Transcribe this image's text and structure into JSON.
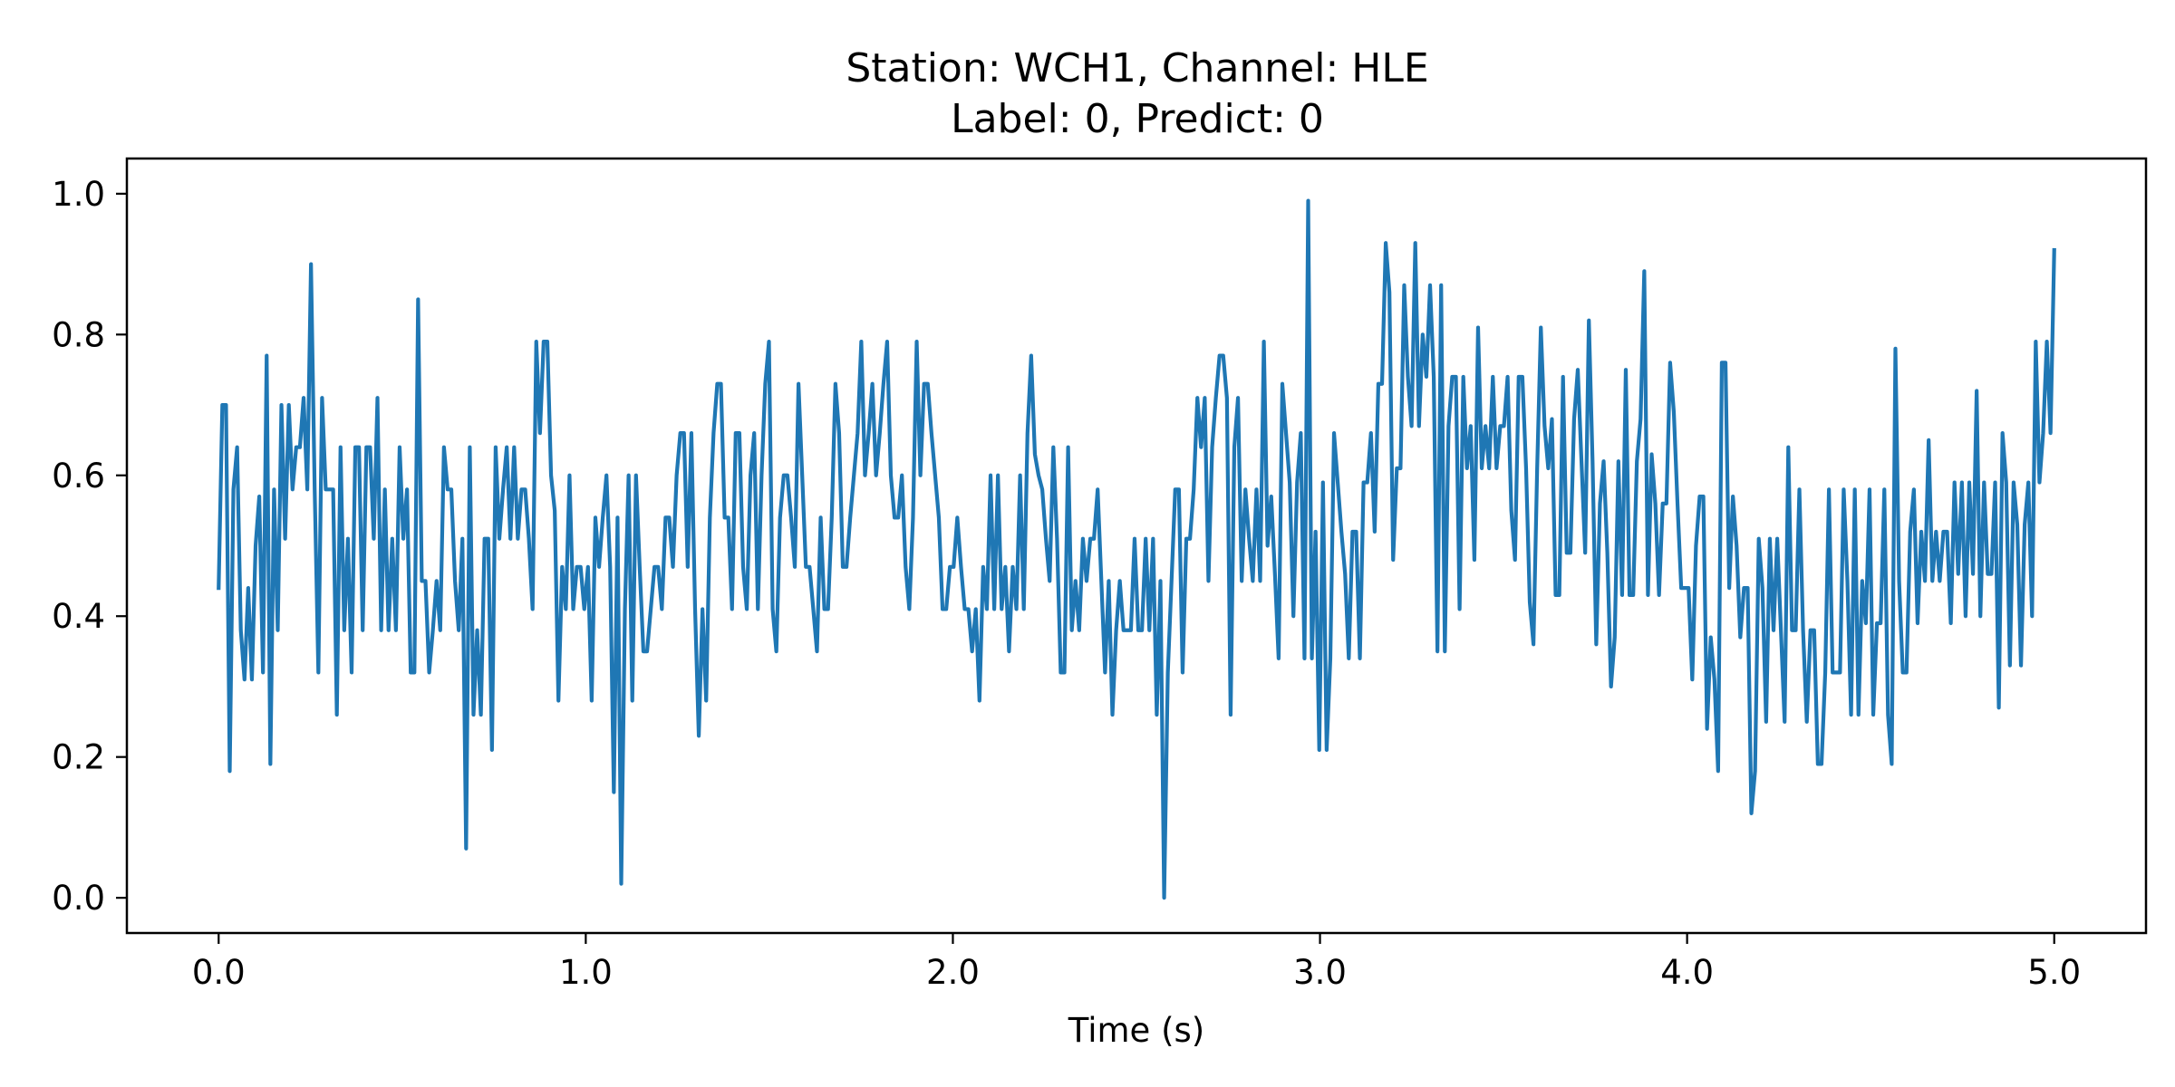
{
  "chart_data": {
    "type": "line",
    "title": [
      "Station: WCH1, Channel: HLE",
      "Label: 0, Predict: 0"
    ],
    "xlabel": "Time (s)",
    "ylabel": "",
    "xlim": [
      -0.25,
      5.25
    ],
    "ylim": [
      -0.05,
      1.05
    ],
    "xticks": [
      0.0,
      1.0,
      2.0,
      3.0,
      4.0,
      5.0
    ],
    "xtick_labels": [
      "0.0",
      "1.0",
      "2.0",
      "3.0",
      "4.0",
      "5.0"
    ],
    "yticks": [
      0.0,
      0.2,
      0.4,
      0.6,
      0.8,
      1.0
    ],
    "ytick_labels": [
      "0.0",
      "0.2",
      "0.4",
      "0.6",
      "0.8",
      "1.0"
    ],
    "grid": false,
    "series": [
      {
        "color": "#1f77b4",
        "x_start": 0.0,
        "x_end": 5.0,
        "values": [
          0.44,
          0.7,
          0.7,
          0.18,
          0.58,
          0.64,
          0.38,
          0.31,
          0.44,
          0.31,
          0.5,
          0.57,
          0.32,
          0.77,
          0.19,
          0.58,
          0.38,
          0.7,
          0.51,
          0.7,
          0.58,
          0.64,
          0.64,
          0.71,
          0.58,
          0.9,
          0.58,
          0.32,
          0.71,
          0.58,
          0.58,
          0.58,
          0.26,
          0.64,
          0.38,
          0.51,
          0.32,
          0.64,
          0.64,
          0.38,
          0.64,
          0.64,
          0.51,
          0.71,
          0.38,
          0.58,
          0.38,
          0.51,
          0.38,
          0.64,
          0.51,
          0.58,
          0.32,
          0.32,
          0.85,
          0.45,
          0.45,
          0.32,
          0.38,
          0.45,
          0.38,
          0.64,
          0.58,
          0.58,
          0.45,
          0.38,
          0.51,
          0.07,
          0.64,
          0.26,
          0.38,
          0.26,
          0.51,
          0.51,
          0.21,
          0.64,
          0.51,
          0.58,
          0.64,
          0.51,
          0.64,
          0.51,
          0.58,
          0.58,
          0.51,
          0.41,
          0.79,
          0.66,
          0.79,
          0.79,
          0.6,
          0.55,
          0.28,
          0.47,
          0.41,
          0.6,
          0.41,
          0.47,
          0.47,
          0.41,
          0.47,
          0.28,
          0.54,
          0.47,
          0.54,
          0.6,
          0.47,
          0.15,
          0.54,
          0.02,
          0.41,
          0.6,
          0.28,
          0.6,
          0.47,
          0.35,
          0.35,
          0.41,
          0.47,
          0.47,
          0.41,
          0.54,
          0.54,
          0.47,
          0.6,
          0.66,
          0.66,
          0.47,
          0.66,
          0.41,
          0.23,
          0.41,
          0.28,
          0.54,
          0.66,
          0.73,
          0.73,
          0.54,
          0.54,
          0.41,
          0.66,
          0.66,
          0.47,
          0.41,
          0.6,
          0.66,
          0.41,
          0.6,
          0.73,
          0.79,
          0.41,
          0.35,
          0.54,
          0.6,
          0.6,
          0.54,
          0.47,
          0.73,
          0.6,
          0.47,
          0.47,
          0.41,
          0.35,
          0.54,
          0.41,
          0.41,
          0.54,
          0.73,
          0.66,
          0.47,
          0.47,
          0.54,
          0.6,
          0.66,
          0.79,
          0.6,
          0.66,
          0.73,
          0.6,
          0.66,
          0.73,
          0.79,
          0.6,
          0.54,
          0.54,
          0.6,
          0.47,
          0.41,
          0.54,
          0.79,
          0.6,
          0.73,
          0.73,
          0.66,
          0.6,
          0.54,
          0.41,
          0.41,
          0.47,
          0.47,
          0.54,
          0.47,
          0.41,
          0.41,
          0.35,
          0.41,
          0.28,
          0.47,
          0.41,
          0.6,
          0.41,
          0.6,
          0.41,
          0.47,
          0.35,
          0.47,
          0.41,
          0.6,
          0.41,
          0.66,
          0.77,
          0.63,
          0.6,
          0.58,
          0.51,
          0.45,
          0.64,
          0.51,
          0.32,
          0.32,
          0.64,
          0.38,
          0.45,
          0.38,
          0.51,
          0.45,
          0.51,
          0.51,
          0.58,
          0.45,
          0.32,
          0.45,
          0.26,
          0.38,
          0.45,
          0.38,
          0.38,
          0.38,
          0.51,
          0.38,
          0.38,
          0.51,
          0.38,
          0.51,
          0.26,
          0.45,
          0.0,
          0.32,
          0.45,
          0.58,
          0.58,
          0.32,
          0.51,
          0.51,
          0.58,
          0.71,
          0.64,
          0.71,
          0.45,
          0.64,
          0.71,
          0.77,
          0.77,
          0.71,
          0.26,
          0.64,
          0.71,
          0.45,
          0.58,
          0.51,
          0.45,
          0.58,
          0.45,
          0.79,
          0.5,
          0.57,
          0.46,
          0.34,
          0.73,
          0.66,
          0.59,
          0.4,
          0.59,
          0.66,
          0.34,
          0.99,
          0.34,
          0.52,
          0.21,
          0.59,
          0.21,
          0.34,
          0.66,
          0.59,
          0.52,
          0.46,
          0.34,
          0.52,
          0.52,
          0.34,
          0.59,
          0.59,
          0.66,
          0.52,
          0.73,
          0.73,
          0.93,
          0.86,
          0.48,
          0.61,
          0.61,
          0.87,
          0.74,
          0.67,
          0.93,
          0.67,
          0.8,
          0.74,
          0.87,
          0.74,
          0.35,
          0.87,
          0.35,
          0.67,
          0.74,
          0.74,
          0.41,
          0.74,
          0.61,
          0.67,
          0.48,
          0.81,
          0.61,
          0.67,
          0.61,
          0.74,
          0.61,
          0.67,
          0.67,
          0.74,
          0.55,
          0.48,
          0.74,
          0.74,
          0.61,
          0.42,
          0.36,
          0.61,
          0.81,
          0.67,
          0.61,
          0.68,
          0.43,
          0.43,
          0.74,
          0.49,
          0.49,
          0.68,
          0.75,
          0.62,
          0.49,
          0.82,
          0.62,
          0.36,
          0.56,
          0.62,
          0.49,
          0.3,
          0.37,
          0.62,
          0.43,
          0.75,
          0.43,
          0.43,
          0.62,
          0.68,
          0.89,
          0.43,
          0.63,
          0.56,
          0.43,
          0.56,
          0.56,
          0.76,
          0.69,
          0.56,
          0.44,
          0.44,
          0.44,
          0.31,
          0.5,
          0.57,
          0.57,
          0.24,
          0.37,
          0.31,
          0.18,
          0.76,
          0.76,
          0.44,
          0.57,
          0.5,
          0.37,
          0.44,
          0.44,
          0.12,
          0.18,
          0.51,
          0.44,
          0.25,
          0.51,
          0.38,
          0.51,
          0.38,
          0.25,
          0.64,
          0.38,
          0.38,
          0.58,
          0.38,
          0.25,
          0.38,
          0.38,
          0.19,
          0.19,
          0.32,
          0.58,
          0.32,
          0.32,
          0.32,
          0.58,
          0.45,
          0.26,
          0.58,
          0.26,
          0.45,
          0.39,
          0.58,
          0.26,
          0.39,
          0.39,
          0.58,
          0.26,
          0.19,
          0.78,
          0.45,
          0.32,
          0.32,
          0.52,
          0.58,
          0.39,
          0.52,
          0.45,
          0.65,
          0.45,
          0.52,
          0.45,
          0.52,
          0.52,
          0.39,
          0.59,
          0.46,
          0.59,
          0.4,
          0.59,
          0.46,
          0.72,
          0.4,
          0.59,
          0.46,
          0.46,
          0.59,
          0.27,
          0.66,
          0.59,
          0.33,
          0.59,
          0.53,
          0.33,
          0.53,
          0.59,
          0.4,
          0.79,
          0.59,
          0.66,
          0.79,
          0.66,
          0.92
        ]
      }
    ]
  }
}
